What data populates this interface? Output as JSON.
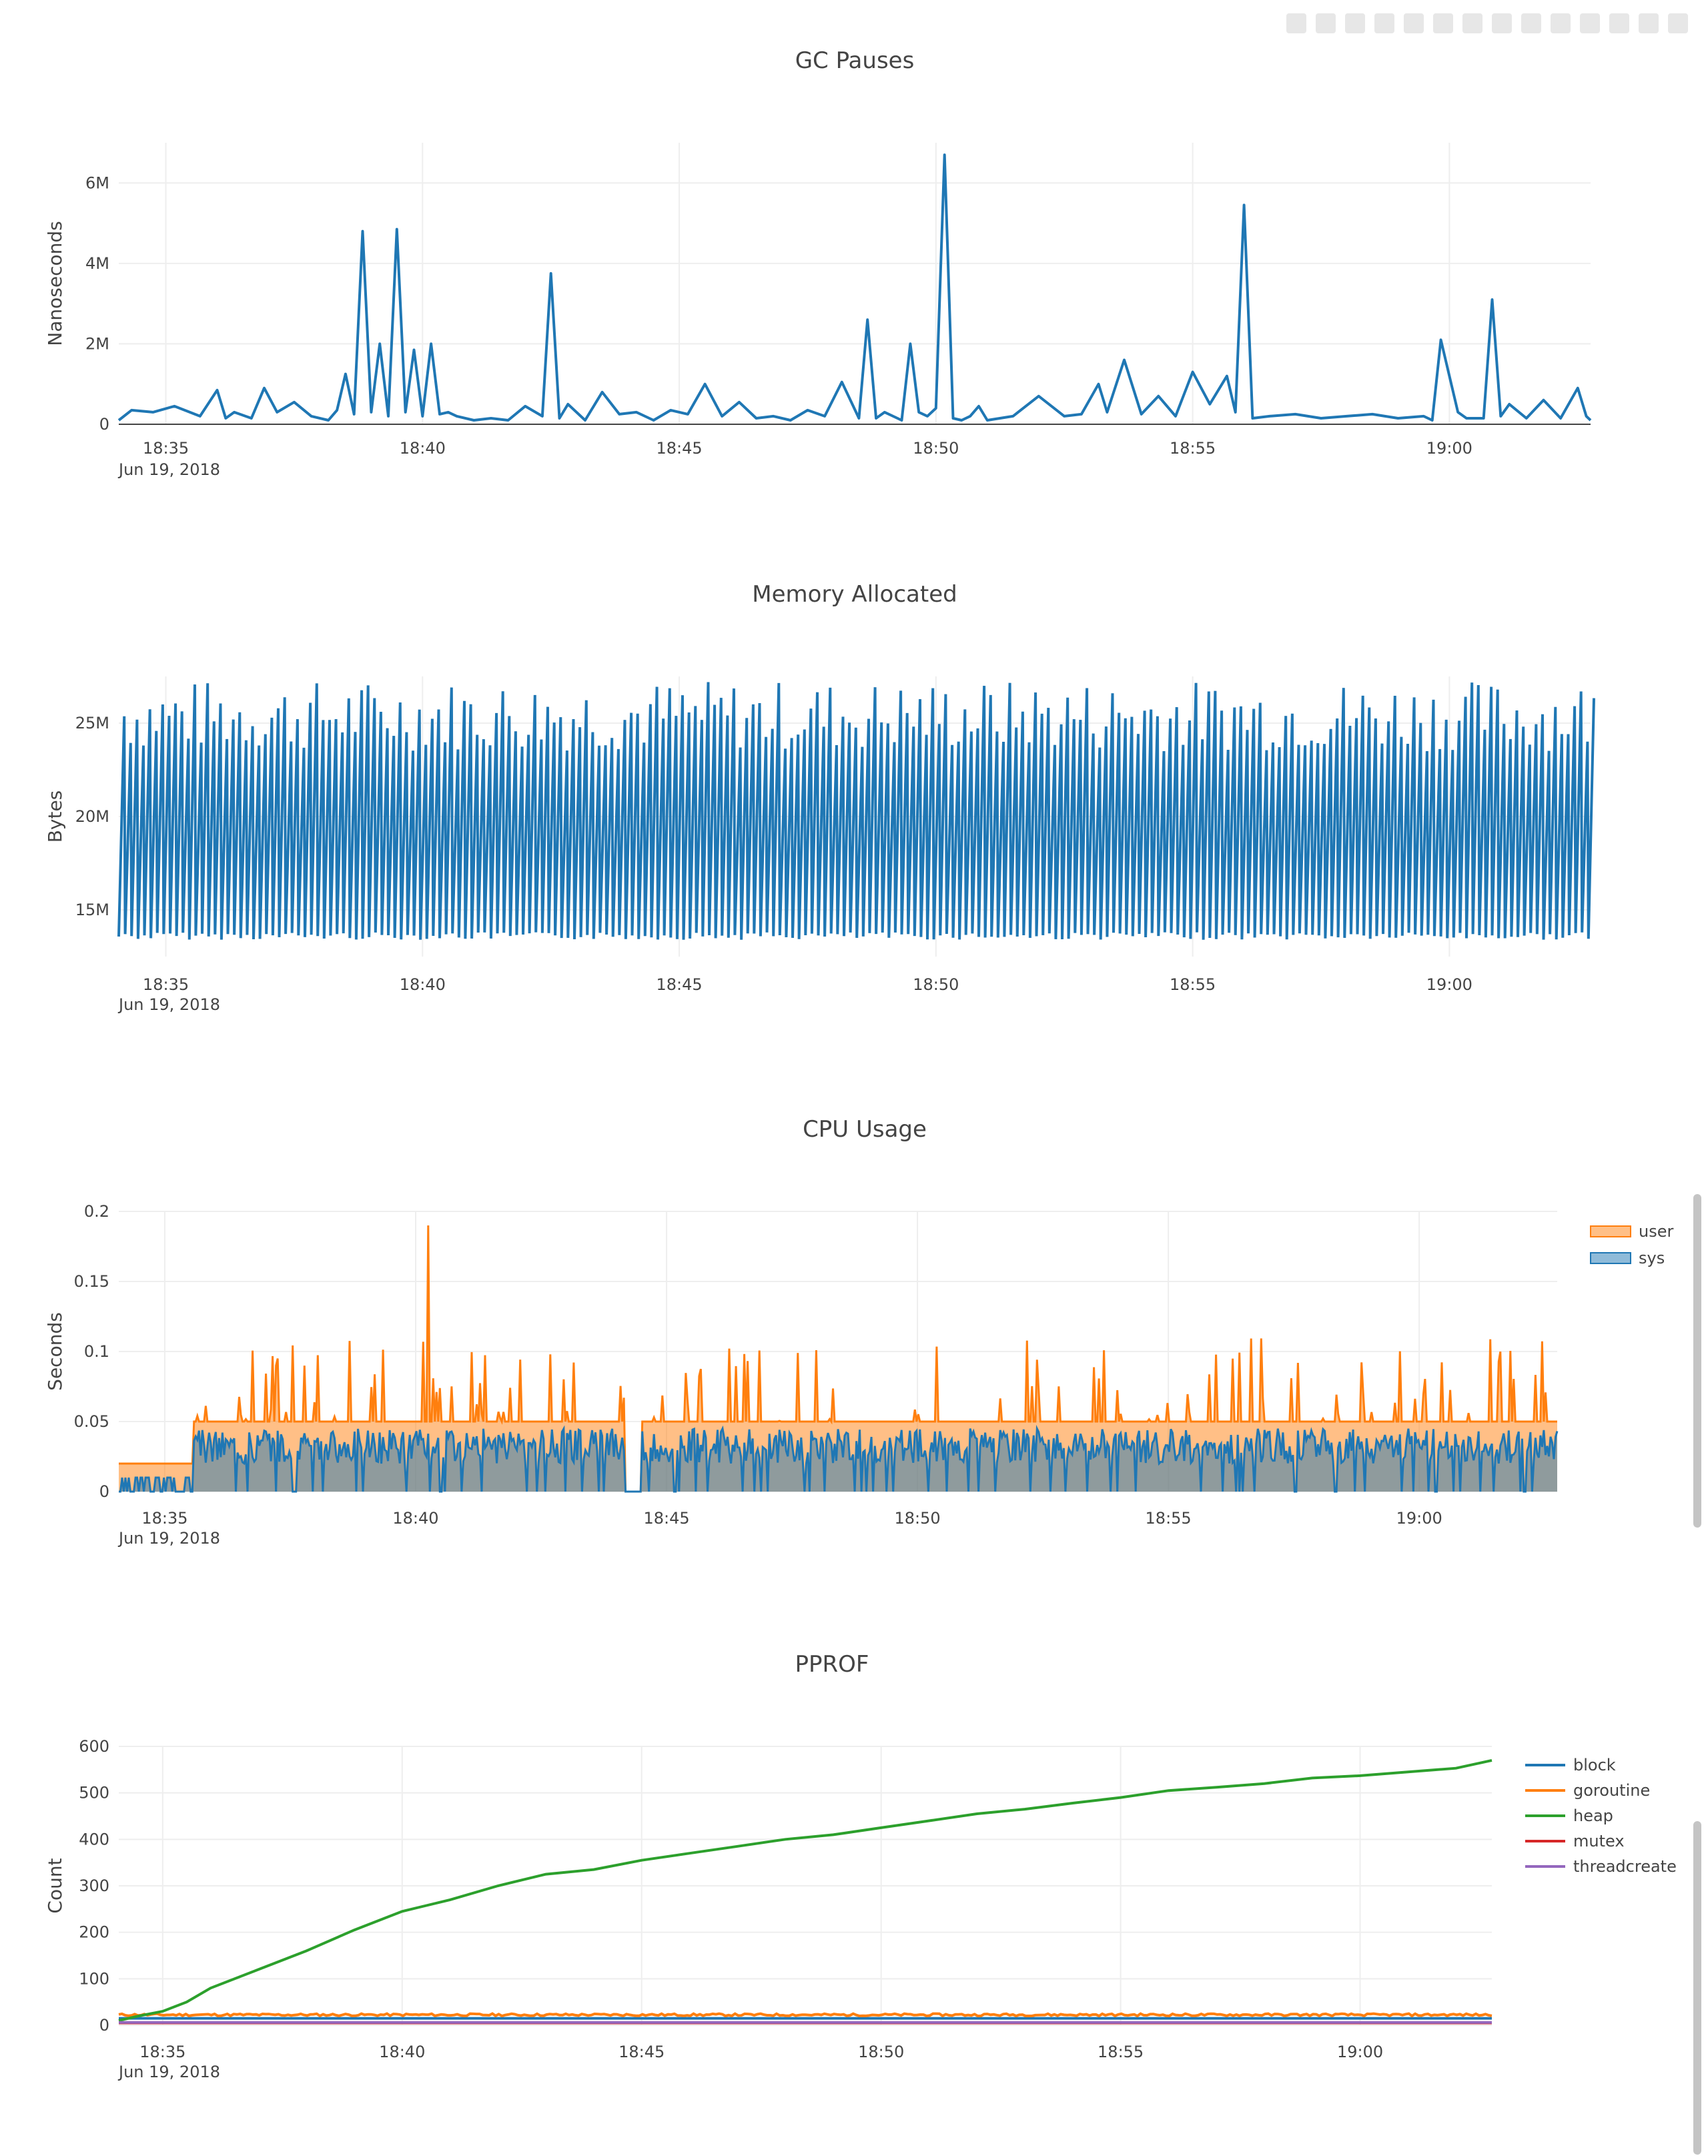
{
  "colors": {
    "blue": "#1f77b4",
    "orange": "#ff7f0e",
    "green": "#2ca02c",
    "red": "#d62728",
    "purple": "#9467bd",
    "grid": "#eeeeee",
    "axis": "#444444",
    "text": "#444444"
  },
  "modebar_icons": [
    "camera-icon",
    "edit-icon",
    "zoom-icon",
    "pan-icon",
    "box-select-icon",
    "lasso-icon",
    "zoom-in-icon",
    "zoom-out-icon",
    "autoscale-icon",
    "reset-icon",
    "spike-icon",
    "hover-closest-icon",
    "hover-compare-icon",
    "plotly-logo-icon"
  ],
  "chart_data": [
    {
      "id": "gc",
      "type": "line",
      "title": "GC Pauses",
      "ylabel": "Nanoseconds",
      "x_ticks": [
        "18:35",
        "18:40",
        "18:45",
        "18:50",
        "18:55",
        "19:00"
      ],
      "x_date_label": "Jun 19, 2018",
      "y_ticks": [
        "0",
        "2M",
        "4M",
        "6M"
      ],
      "y_tick_values": [
        0,
        2000000,
        4000000,
        6000000
      ],
      "ylim": [
        0,
        7000000
      ],
      "xlim": [
        "18:34:05",
        "19:02:45"
      ],
      "series": [
        {
          "color": "#1f77b4",
          "x": [
            "18:34:05",
            "18:34:20",
            "18:34:45",
            "18:35:10",
            "18:35:40",
            "18:36:00",
            "18:36:10",
            "18:36:20",
            "18:36:40",
            "18:36:55",
            "18:37:10",
            "18:37:30",
            "18:37:50",
            "18:38:10",
            "18:38:20",
            "18:38:30",
            "18:38:40",
            "18:38:50",
            "18:39:00",
            "18:39:10",
            "18:39:20",
            "18:39:30",
            "18:39:40",
            "18:39:50",
            "18:40:00",
            "18:40:10",
            "18:40:20",
            "18:40:30",
            "18:40:40",
            "18:41:00",
            "18:41:20",
            "18:41:40",
            "18:42:00",
            "18:42:20",
            "18:42:30",
            "18:42:40",
            "18:42:50",
            "18:43:10",
            "18:43:30",
            "18:43:50",
            "18:44:10",
            "18:44:30",
            "18:44:50",
            "18:45:10",
            "18:45:30",
            "18:45:50",
            "18:46:10",
            "18:46:30",
            "18:46:50",
            "18:47:10",
            "18:47:30",
            "18:47:50",
            "18:48:10",
            "18:48:30",
            "18:48:40",
            "18:48:50",
            "18:49:00",
            "18:49:20",
            "18:49:30",
            "18:49:40",
            "18:49:50",
            "18:50:00",
            "18:50:10",
            "18:50:20",
            "18:50:30",
            "18:50:40",
            "18:50:50",
            "18:51:00",
            "18:51:30",
            "18:52:00",
            "18:52:30",
            "18:52:50",
            "18:53:10",
            "18:53:20",
            "18:53:40",
            "18:54:00",
            "18:54:20",
            "18:54:40",
            "18:55:00",
            "18:55:20",
            "18:55:40",
            "18:55:50",
            "18:56:00",
            "18:56:10",
            "18:56:30",
            "18:57:00",
            "18:57:30",
            "18:58:00",
            "18:58:30",
            "18:59:00",
            "18:59:30",
            "18:59:40",
            "18:59:50",
            "19:00:10",
            "19:00:20",
            "19:00:40",
            "19:00:50",
            "19:01:00",
            "19:01:10",
            "19:01:30",
            "19:01:50",
            "19:02:10",
            "19:02:30",
            "19:02:40",
            "19:02:45"
          ],
          "y": [
            100000,
            350000,
            300000,
            450000,
            200000,
            850000,
            150000,
            300000,
            150000,
            900000,
            300000,
            550000,
            200000,
            100000,
            350000,
            1250000,
            250000,
            4800000,
            300000,
            2000000,
            200000,
            4850000,
            300000,
            1850000,
            200000,
            2000000,
            250000,
            300000,
            200000,
            100000,
            150000,
            100000,
            450000,
            200000,
            3750000,
            150000,
            500000,
            100000,
            800000,
            250000,
            300000,
            100000,
            350000,
            250000,
            1000000,
            200000,
            550000,
            150000,
            200000,
            100000,
            350000,
            200000,
            1050000,
            150000,
            2600000,
            150000,
            300000,
            100000,
            2000000,
            300000,
            200000,
            400000,
            6700000,
            150000,
            100000,
            200000,
            450000,
            100000,
            200000,
            700000,
            200000,
            250000,
            1000000,
            300000,
            1600000,
            250000,
            700000,
            200000,
            1300000,
            500000,
            1200000,
            300000,
            5450000,
            150000,
            200000,
            250000,
            150000,
            200000,
            250000,
            150000,
            200000,
            100000,
            2100000,
            300000,
            150000,
            150000,
            3100000,
            200000,
            500000,
            150000,
            600000,
            150000,
            900000,
            200000,
            100000
          ]
        }
      ]
    },
    {
      "id": "mem",
      "type": "line",
      "title": "Memory Allocated",
      "ylabel": "Bytes",
      "x_ticks": [
        "18:35",
        "18:40",
        "18:45",
        "18:50",
        "18:55",
        "19:00"
      ],
      "x_date_label": "Jun 19, 2018",
      "y_ticks": [
        "15M",
        "20M",
        "25M"
      ],
      "y_tick_values": [
        15000000,
        20000000,
        25000000
      ],
      "ylim": [
        12500000,
        27500000
      ],
      "xlim": [
        "18:34:05",
        "19:02:45"
      ],
      "series": [
        {
          "color": "#1f77b4",
          "pattern": "sawtooth",
          "low": 13800000,
          "high_min": 23500000,
          "high_max": 27300000,
          "period_seconds": 7.5
        }
      ]
    },
    {
      "id": "cpu",
      "type": "area",
      "title": "CPU Usage",
      "ylabel": "Seconds",
      "x_ticks": [
        "18:35",
        "18:40",
        "18:45",
        "18:50",
        "18:55",
        "19:00"
      ],
      "x_date_label": "Jun 19, 2018",
      "y_ticks": [
        "0",
        "0.05",
        "0.1",
        "0.15",
        "0.2"
      ],
      "y_tick_values": [
        0,
        0.05,
        0.1,
        0.15,
        0.2
      ],
      "ylim": [
        0,
        0.2
      ],
      "xlim": [
        "18:34:05",
        "19:02:45"
      ],
      "legend": "top-right",
      "series": [
        {
          "name": "user",
          "color": "#ff7f0e",
          "typical": 0.05,
          "peak": 0.19
        },
        {
          "name": "sys",
          "color": "#1f77b4",
          "typical": 0.03,
          "peak": 0.05
        }
      ]
    },
    {
      "id": "pprof",
      "type": "line",
      "title": "PPROF",
      "ylabel": "Count",
      "x_ticks": [
        "18:35",
        "18:40",
        "18:45",
        "18:50",
        "18:55",
        "19:00"
      ],
      "x_date_label": "Jun 19, 2018",
      "y_ticks": [
        "0",
        "100",
        "200",
        "300",
        "400",
        "500",
        "600"
      ],
      "y_tick_values": [
        0,
        100,
        200,
        300,
        400,
        500,
        600
      ],
      "ylim": [
        0,
        600
      ],
      "xlim": [
        "18:34:05",
        "19:02:45"
      ],
      "legend": "top-right",
      "series": [
        {
          "name": "block",
          "color": "#1f77b4",
          "x": [
            "18:34:05",
            "19:02:45"
          ],
          "y": [
            15,
            15
          ]
        },
        {
          "name": "goroutine",
          "color": "#ff7f0e",
          "x": [
            "18:34:05",
            "18:36:00",
            "18:38:00",
            "18:40:00",
            "18:42:00",
            "18:44:00",
            "18:46:00",
            "18:48:00",
            "18:50:00",
            "18:52:00",
            "18:54:00",
            "18:56:00",
            "18:58:00",
            "19:00:00",
            "19:02:00",
            "19:02:45"
          ],
          "y": [
            20,
            22,
            23,
            22,
            21,
            22,
            22,
            21,
            22,
            21,
            22,
            22,
            21,
            22,
            22,
            21
          ]
        },
        {
          "name": "heap",
          "color": "#2ca02c",
          "x": [
            "18:34:05",
            "18:34:30",
            "18:35:00",
            "18:35:30",
            "18:36:00",
            "18:37:00",
            "18:38:00",
            "18:39:00",
            "18:40:00",
            "18:41:00",
            "18:42:00",
            "18:43:00",
            "18:44:00",
            "18:45:00",
            "18:46:00",
            "18:47:00",
            "18:48:00",
            "18:49:00",
            "18:50:00",
            "18:51:00",
            "18:52:00",
            "18:53:00",
            "18:54:00",
            "18:55:00",
            "18:56:00",
            "18:57:00",
            "18:58:00",
            "18:59:00",
            "19:00:00",
            "19:01:00",
            "19:02:00",
            "19:02:45"
          ],
          "y": [
            10,
            20,
            30,
            50,
            80,
            120,
            160,
            205,
            245,
            270,
            300,
            325,
            335,
            355,
            370,
            385,
            400,
            410,
            425,
            440,
            455,
            465,
            478,
            490,
            505,
            512,
            520,
            532,
            537,
            545,
            553,
            570
          ]
        },
        {
          "name": "mutex",
          "color": "#d62728",
          "x": [
            "18:34:05",
            "19:02:45"
          ],
          "y": [
            5,
            5
          ]
        },
        {
          "name": "threadcreate",
          "color": "#9467bd",
          "x": [
            "18:34:05",
            "19:02:45"
          ],
          "y": [
            6,
            6
          ]
        }
      ]
    }
  ]
}
